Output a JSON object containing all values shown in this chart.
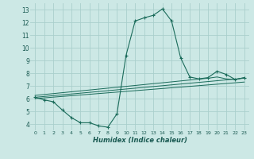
{
  "xlabel": "Humidex (Indice chaleur)",
  "background_color": "#cce8e5",
  "grid_color": "#aacfcc",
  "line_color": "#1a6b5a",
  "xlim": [
    -0.5,
    23.5
  ],
  "ylim": [
    3.5,
    13.5
  ],
  "xticks": [
    0,
    1,
    2,
    3,
    4,
    5,
    6,
    7,
    8,
    9,
    10,
    11,
    12,
    13,
    14,
    15,
    16,
    17,
    18,
    19,
    20,
    21,
    22,
    23
  ],
  "yticks": [
    4,
    5,
    6,
    7,
    8,
    9,
    10,
    11,
    12,
    13
  ],
  "curve1_x": [
    0,
    1,
    2,
    3,
    4,
    5,
    6,
    7,
    8,
    9,
    10,
    11,
    12,
    13,
    14,
    15,
    16,
    17,
    18,
    19,
    20,
    21,
    22,
    23
  ],
  "curve1_y": [
    6.1,
    5.9,
    5.75,
    5.1,
    4.5,
    4.1,
    4.1,
    3.85,
    3.75,
    4.8,
    9.4,
    12.1,
    12.35,
    12.55,
    13.05,
    12.1,
    9.2,
    7.7,
    7.55,
    7.65,
    8.15,
    7.9,
    7.5,
    7.65
  ],
  "curve2_x": [
    0,
    23
  ],
  "curve2_y": [
    6.1,
    7.6
  ],
  "curve3_x": [
    0,
    23
  ],
  "curve3_y": [
    6.0,
    7.3
  ],
  "curve4_x": [
    0,
    19,
    20,
    21,
    22,
    23
  ],
  "curve4_y": [
    6.25,
    7.6,
    7.7,
    7.55,
    7.5,
    7.65
  ]
}
